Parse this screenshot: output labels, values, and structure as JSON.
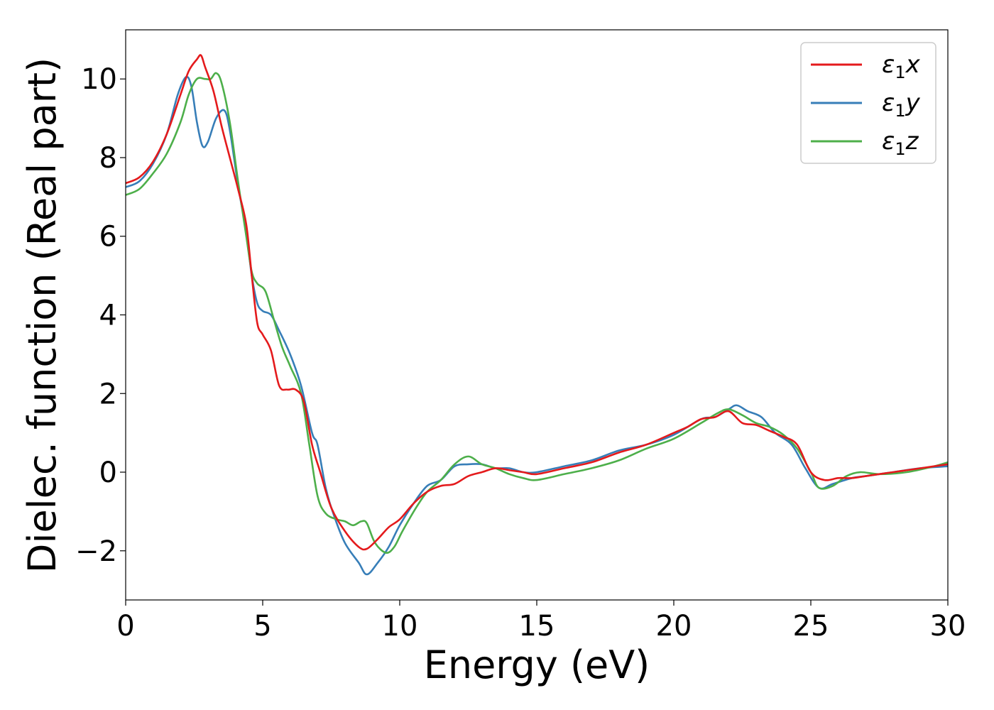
{
  "chart_data": {
    "type": "line",
    "xlabel": "Energy (eV)",
    "ylabel": "Dielec. function (Real part)",
    "xlim": [
      0,
      30
    ],
    "ylim": [
      -3.25,
      11.25
    ],
    "xticks": [
      0,
      5,
      10,
      15,
      20,
      25,
      30
    ],
    "xtick_labels": [
      "0",
      "5",
      "10",
      "15",
      "20",
      "25",
      "30"
    ],
    "yticks": [
      -2,
      0,
      2,
      4,
      6,
      8,
      10
    ],
    "ytick_labels": [
      "−2",
      "0",
      "2",
      "4",
      "6",
      "8",
      "10"
    ],
    "grid": false,
    "legend_position": "top-right",
    "series": [
      {
        "name": "ε1x",
        "label_base": "ε",
        "label_sub": "1",
        "label_var": "x",
        "color": "#e41a1c",
        "x": [
          0,
          0.5,
          1,
          1.5,
          2,
          2.3,
          2.6,
          2.75,
          2.9,
          3.2,
          3.5,
          3.8,
          4.1,
          4.4,
          4.6,
          4.8,
          5.0,
          5.3,
          5.6,
          5.9,
          6.2,
          6.5,
          6.8,
          7.1,
          7.5,
          8.0,
          8.5,
          8.8,
          9.2,
          9.6,
          10.0,
          10.5,
          11.0,
          11.5,
          12.0,
          12.5,
          13.0,
          13.5,
          14.0,
          14.5,
          15.0,
          16.0,
          17.0,
          18.0,
          19.0,
          20.0,
          20.5,
          21.0,
          21.5,
          22.0,
          22.5,
          23.0,
          23.5,
          24.0,
          24.5,
          25.0,
          25.5,
          26.0,
          26.5,
          27.0,
          28.0,
          29.0,
          30.0
        ],
        "y": [
          7.35,
          7.5,
          7.9,
          8.6,
          9.6,
          10.2,
          10.5,
          10.6,
          10.3,
          9.7,
          8.8,
          8.0,
          7.2,
          6.3,
          5.0,
          3.8,
          3.5,
          3.1,
          2.2,
          2.1,
          2.1,
          1.8,
          0.7,
          0.0,
          -0.9,
          -1.5,
          -1.9,
          -1.95,
          -1.7,
          -1.4,
          -1.2,
          -0.8,
          -0.5,
          -0.35,
          -0.3,
          -0.1,
          0.0,
          0.1,
          0.05,
          0.0,
          -0.05,
          0.1,
          0.25,
          0.5,
          0.7,
          1.0,
          1.15,
          1.35,
          1.4,
          1.55,
          1.25,
          1.2,
          1.05,
          0.9,
          0.7,
          0.0,
          -0.2,
          -0.15,
          -0.15,
          -0.1,
          0.0,
          0.1,
          0.2
        ]
      },
      {
        "name": "ε1y",
        "label_base": "ε",
        "label_sub": "1",
        "label_var": "y",
        "color": "#377eb8",
        "x": [
          0,
          0.5,
          1,
          1.5,
          1.9,
          2.2,
          2.4,
          2.6,
          2.8,
          3.0,
          3.3,
          3.6,
          3.8,
          4.1,
          4.4,
          4.6,
          4.8,
          5.0,
          5.3,
          5.6,
          6.0,
          6.4,
          6.8,
          7.0,
          7.3,
          7.6,
          8.0,
          8.5,
          8.8,
          9.2,
          9.6,
          10.0,
          10.5,
          11.0,
          11.5,
          12.0,
          12.5,
          13.0,
          13.5,
          14.0,
          14.5,
          15.0,
          16.0,
          17.0,
          18.0,
          19.0,
          20.0,
          21.0,
          21.5,
          22.0,
          22.3,
          22.7,
          23.2,
          23.7,
          24.3,
          24.8,
          25.3,
          25.8,
          26.5,
          27.0,
          28.0,
          29.0,
          30.0
        ],
        "y": [
          7.25,
          7.4,
          7.85,
          8.6,
          9.6,
          10.05,
          9.8,
          8.9,
          8.3,
          8.4,
          9.0,
          9.2,
          8.7,
          7.3,
          6.1,
          5.0,
          4.3,
          4.1,
          4.0,
          3.6,
          3.0,
          2.2,
          1.0,
          0.7,
          -0.4,
          -1.1,
          -1.8,
          -2.3,
          -2.6,
          -2.3,
          -1.9,
          -1.35,
          -0.8,
          -0.35,
          -0.2,
          0.15,
          0.2,
          0.2,
          0.1,
          0.1,
          0.0,
          0.0,
          0.15,
          0.3,
          0.55,
          0.7,
          0.95,
          1.35,
          1.4,
          1.6,
          1.7,
          1.55,
          1.4,
          1.0,
          0.7,
          0.1,
          -0.4,
          -0.3,
          -0.15,
          -0.1,
          0.0,
          0.1,
          0.15
        ]
      },
      {
        "name": "ε1z",
        "label_base": "ε",
        "label_sub": "1",
        "label_var": "z",
        "color": "#4daf4a",
        "x": [
          0,
          0.5,
          1,
          1.5,
          2.0,
          2.3,
          2.6,
          2.9,
          3.1,
          3.3,
          3.5,
          3.8,
          4.1,
          4.4,
          4.6,
          4.8,
          5.1,
          5.4,
          5.7,
          6.0,
          6.4,
          6.7,
          7.0,
          7.3,
          7.7,
          8.0,
          8.3,
          8.6,
          8.8,
          9.1,
          9.5,
          9.8,
          10.1,
          10.6,
          11.0,
          11.5,
          12.0,
          12.5,
          13.0,
          13.5,
          14.0,
          14.5,
          15.0,
          16.0,
          17.0,
          18.0,
          19.0,
          20.0,
          21.0,
          21.6,
          22.0,
          22.5,
          23.0,
          23.5,
          24.0,
          24.5,
          25.0,
          25.3,
          25.8,
          26.3,
          26.8,
          27.5,
          28.5,
          29.5,
          30.0
        ],
        "y": [
          7.05,
          7.2,
          7.6,
          8.1,
          8.9,
          9.6,
          10.0,
          10.0,
          10.0,
          10.15,
          9.9,
          8.9,
          7.4,
          6.0,
          5.1,
          4.8,
          4.6,
          3.9,
          3.2,
          2.7,
          2.0,
          0.7,
          -0.6,
          -1.05,
          -1.2,
          -1.25,
          -1.35,
          -1.25,
          -1.3,
          -1.8,
          -2.05,
          -1.9,
          -1.5,
          -0.9,
          -0.5,
          -0.2,
          0.2,
          0.4,
          0.2,
          0.1,
          -0.05,
          -0.15,
          -0.2,
          -0.05,
          0.1,
          0.3,
          0.6,
          0.85,
          1.25,
          1.5,
          1.6,
          1.45,
          1.25,
          1.15,
          0.95,
          0.6,
          0.0,
          -0.4,
          -0.35,
          -0.1,
          0.0,
          -0.05,
          0.0,
          0.15,
          0.25
        ]
      }
    ]
  }
}
